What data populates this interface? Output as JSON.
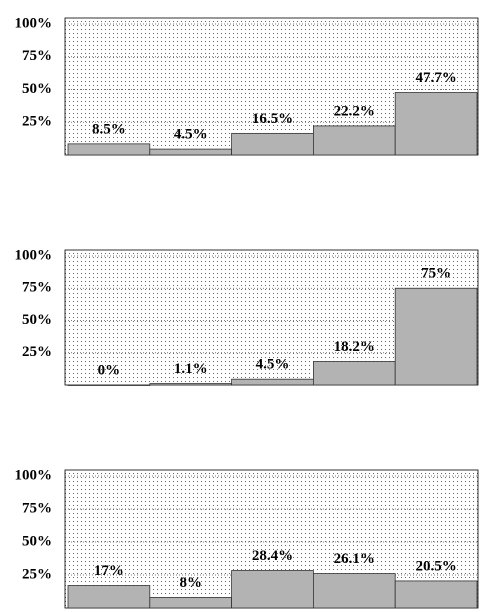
{
  "chart_data": [
    {
      "type": "bar",
      "values": [
        8.5,
        4.5,
        16.5,
        22.2,
        47.7
      ],
      "value_labels": [
        "8.5%",
        "4.5%",
        "16.5%",
        "22.2%",
        "47.7%"
      ],
      "color": "#b3b3b3",
      "ylim": [
        0,
        100
      ],
      "yticks": [
        {
          "value": 25,
          "label": "25%"
        },
        {
          "value": 50,
          "label": "50%"
        },
        {
          "value": 75,
          "label": "75%"
        },
        {
          "value": 100,
          "label": "100%"
        }
      ],
      "grid": true
    },
    {
      "type": "bar",
      "values": [
        0,
        1.1,
        4.5,
        18.2,
        75
      ],
      "value_labels": [
        "0%",
        "1.1%",
        "4.5%",
        "18.2%",
        "75%"
      ],
      "color": "#b3b3b3",
      "ylim": [
        0,
        100
      ],
      "yticks": [
        {
          "value": 25,
          "label": "25%"
        },
        {
          "value": 50,
          "label": "50%"
        },
        {
          "value": 75,
          "label": "75%"
        },
        {
          "value": 100,
          "label": "100%"
        }
      ],
      "grid": true
    },
    {
      "type": "bar",
      "values": [
        17,
        8,
        28.4,
        26.1,
        20.5
      ],
      "value_labels": [
        "17%",
        "8%",
        "28.4%",
        "26.1%",
        "20.5%"
      ],
      "color": "#b3b3b3",
      "ylim": [
        0,
        100
      ],
      "yticks": [
        {
          "value": 25,
          "label": "25%"
        },
        {
          "value": 50,
          "label": "50%"
        },
        {
          "value": 75,
          "label": "75%"
        },
        {
          "value": 100,
          "label": "100%"
        }
      ],
      "grid": true
    }
  ]
}
